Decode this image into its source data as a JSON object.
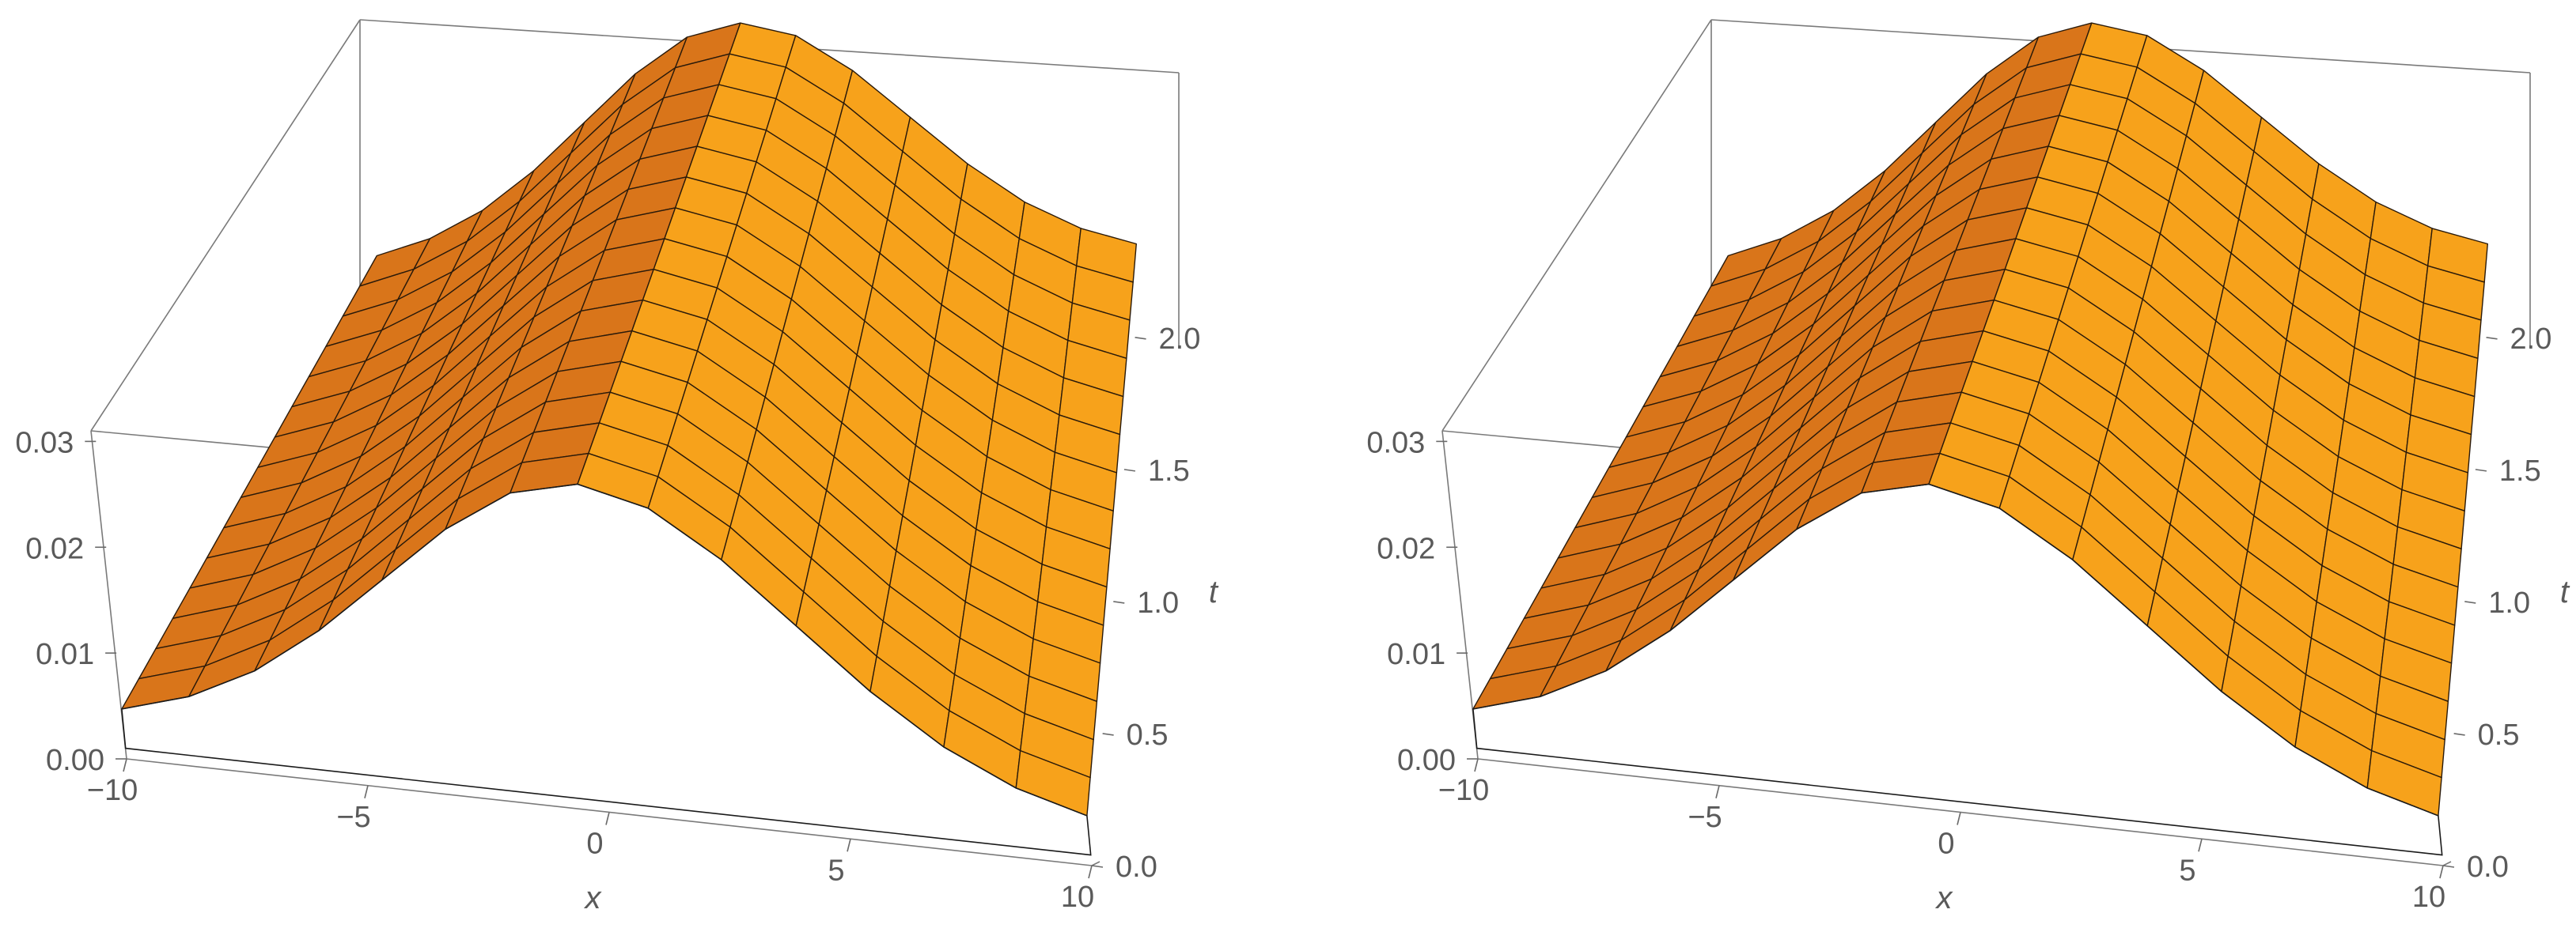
{
  "chart_data": [
    {
      "type": "surface3d",
      "title": "",
      "xlabel": "x",
      "ylabel": "t",
      "zlabel": "",
      "xlim": [
        -10,
        10
      ],
      "ylim": [
        0,
        2.2
      ],
      "zlim": [
        0,
        0.031
      ],
      "x_ticks": [
        "−10",
        "−5",
        "0",
        "5",
        "10"
      ],
      "y_ticks": [
        "0.0",
        "0.5",
        "1.0",
        "1.5",
        "2.0"
      ],
      "z_ticks": [
        "0.00",
        "0.01",
        "0.02",
        "0.03"
      ],
      "surface": {
        "x": [
          -10,
          -8.57,
          -7.14,
          -5.71,
          -4.29,
          -2.86,
          -1.43,
          0,
          1.43,
          2.86,
          4.29,
          5.71,
          7.14,
          8.57,
          10
        ],
        "t": [
          0,
          0.147,
          0.293,
          0.44,
          0.587,
          0.733,
          0.88,
          1.027,
          1.173,
          1.32,
          1.467,
          1.613,
          1.76,
          1.907,
          2.053,
          2.2
        ],
        "profile": "peak ≈ 0.031 at x = 0, falling to ≈ 0.003 at x = ±10; nearly constant in t"
      },
      "colors": {
        "surface": "#f7a21b",
        "surface_shade": "#d9751a",
        "mesh": "#2a1a0a",
        "box": "#7a7a7a"
      }
    },
    {
      "type": "surface3d",
      "title": "",
      "xlabel": "x",
      "ylabel": "t",
      "zlabel": "",
      "xlim": [
        -10,
        10
      ],
      "ylim": [
        0,
        2.2
      ],
      "zlim": [
        0,
        0.031
      ],
      "x_ticks": [
        "−10",
        "−5",
        "0",
        "5",
        "10"
      ],
      "y_ticks": [
        "0.0",
        "0.5",
        "1.0",
        "1.5",
        "2.0"
      ],
      "z_ticks": [
        "0.00",
        "0.01",
        "0.02",
        "0.03"
      ],
      "surface": {
        "x": [
          -10,
          -8.57,
          -7.14,
          -5.71,
          -4.29,
          -2.86,
          -1.43,
          0,
          1.43,
          2.86,
          4.29,
          5.71,
          7.14,
          8.57,
          10
        ],
        "t": [
          0,
          0.147,
          0.293,
          0.44,
          0.587,
          0.733,
          0.88,
          1.027,
          1.173,
          1.32,
          1.467,
          1.613,
          1.76,
          1.907,
          2.053,
          2.2
        ],
        "profile": "peak ≈ 0.031 at x = 0, falling to ≈ 0.003 at x = ±10; nearly constant in t"
      },
      "colors": {
        "surface": "#f7a21b",
        "surface_shade": "#d9751a",
        "mesh": "#2a1a0a",
        "box": "#7a7a7a"
      }
    }
  ]
}
